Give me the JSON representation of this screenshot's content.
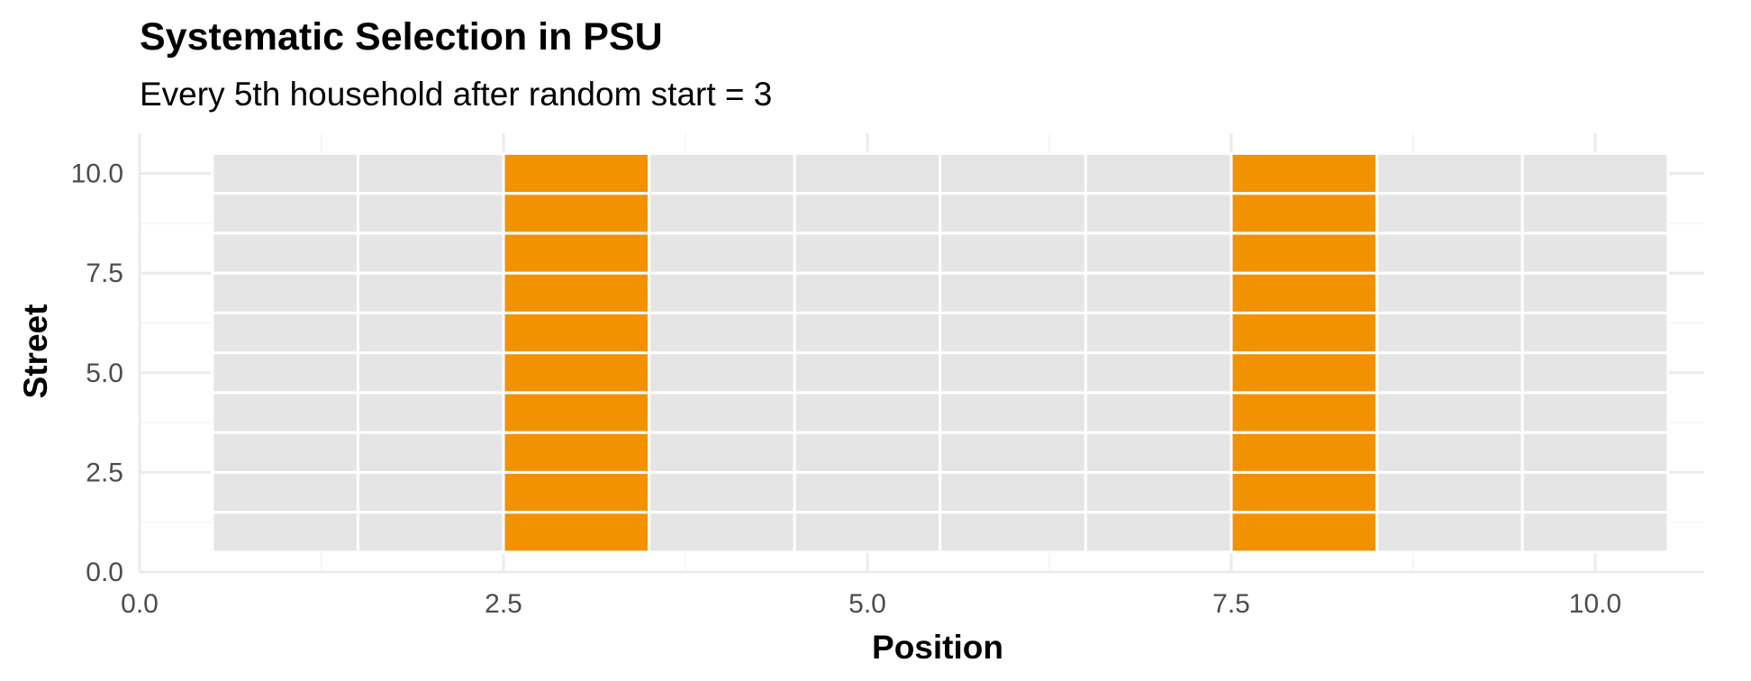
{
  "chart_data": {
    "type": "heatmap",
    "title": "Systematic Selection in PSU",
    "subtitle": "Every 5th household after random start = 3",
    "xlabel": "Position",
    "ylabel": "Street",
    "xlim": [
      0,
      11
    ],
    "ylim": [
      0,
      10.5
    ],
    "x_ticks": [
      0,
      2.5,
      5,
      7.5,
      10
    ],
    "y_ticks": [
      0,
      2.5,
      5,
      7.5,
      10
    ],
    "x_tick_labels": [
      "0.0",
      "2.5",
      "5.0",
      "7.5",
      "10.0"
    ],
    "y_tick_labels": [
      "0.0",
      "2.5",
      "5.0",
      "7.5",
      "10.0"
    ],
    "positions": [
      1,
      2,
      3,
      4,
      5,
      6,
      7,
      8,
      9,
      10
    ],
    "streets": [
      1,
      2,
      3,
      4,
      5,
      6,
      7,
      8,
      9,
      10
    ],
    "selected_positions": [
      3,
      8
    ],
    "grid": true,
    "legend": "none",
    "colors": {
      "selected": "#f39200",
      "not_selected": "#e5e5e5",
      "tile_border": "#ffffff",
      "grid_major": "#ebebeb",
      "grid_minor": "#f4f4f4"
    }
  }
}
